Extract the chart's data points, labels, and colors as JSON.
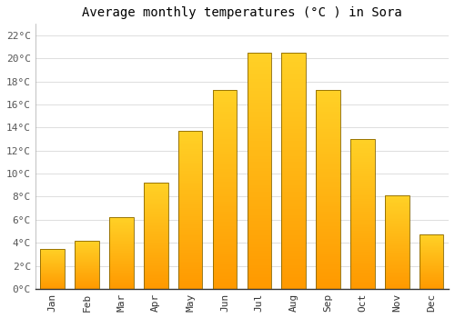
{
  "title": "Average monthly temperatures (°C ) in Sora",
  "months": [
    "Jan",
    "Feb",
    "Mar",
    "Apr",
    "May",
    "Jun",
    "Jul",
    "Aug",
    "Sep",
    "Oct",
    "Nov",
    "Dec"
  ],
  "temperatures": [
    3.5,
    4.2,
    6.2,
    9.2,
    13.7,
    17.3,
    20.5,
    20.5,
    17.3,
    13.0,
    8.1,
    4.7
  ],
  "bar_color_main": "#FFA500",
  "bar_color_light": "#FFD060",
  "bar_edge_color": "#886600",
  "ylim": [
    0,
    23
  ],
  "yticks": [
    0,
    2,
    4,
    6,
    8,
    10,
    12,
    14,
    16,
    18,
    20,
    22
  ],
  "ytick_labels": [
    "0°C",
    "2°C",
    "4°C",
    "6°C",
    "8°C",
    "10°C",
    "12°C",
    "14°C",
    "16°C",
    "18°C",
    "20°C",
    "22°C"
  ],
  "background_color": "#ffffff",
  "grid_color": "#dddddd",
  "title_fontsize": 10,
  "tick_fontsize": 8,
  "font_family": "monospace"
}
